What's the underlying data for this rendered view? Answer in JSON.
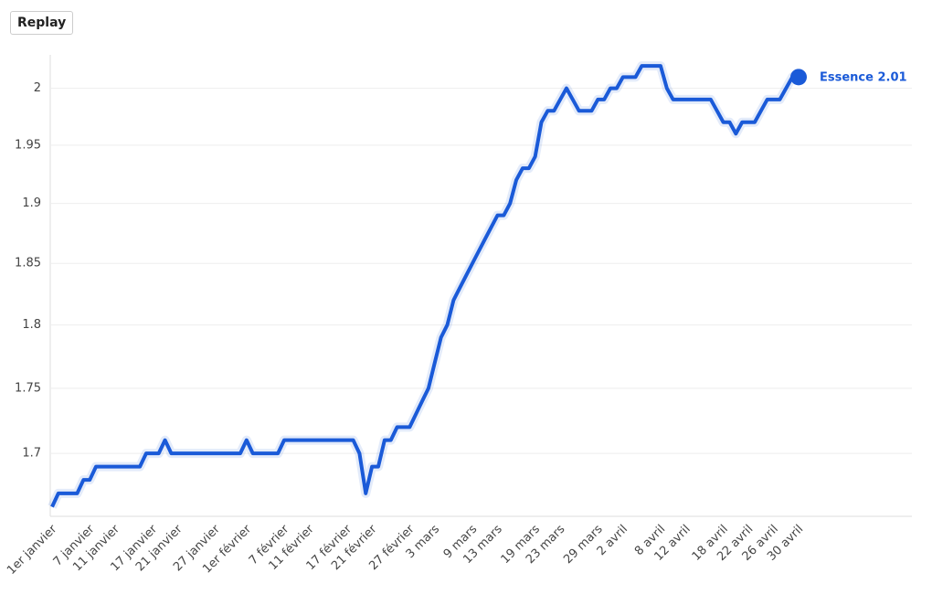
{
  "replay_button": "Replay",
  "chart_data": {
    "type": "line",
    "categories": [
      "1er janvier",
      null,
      null,
      null,
      null,
      null,
      "7 janvier",
      null,
      null,
      null,
      "11 janvier",
      null,
      null,
      null,
      null,
      null,
      "17 janvier",
      null,
      null,
      null,
      "21 janvier",
      null,
      null,
      null,
      null,
      null,
      "27 janvier",
      null,
      null,
      null,
      null,
      "1er février",
      null,
      null,
      null,
      null,
      null,
      "7 février",
      null,
      null,
      null,
      "11 février",
      null,
      null,
      null,
      null,
      null,
      "17 février",
      null,
      null,
      null,
      "21 février",
      null,
      null,
      null,
      null,
      null,
      "27 février",
      null,
      null,
      null,
      "3 mars",
      null,
      null,
      null,
      null,
      null,
      "9 mars",
      null,
      null,
      null,
      "13 mars",
      null,
      null,
      null,
      null,
      null,
      "19 mars",
      null,
      null,
      null,
      "23 mars",
      null,
      null,
      null,
      null,
      null,
      "29 mars",
      null,
      null,
      null,
      "2 avril",
      null,
      null,
      null,
      null,
      null,
      "8 avril",
      null,
      null,
      null,
      "12 avril",
      null,
      null,
      null,
      null,
      null,
      "18 avril",
      null,
      null,
      null,
      "22 avril",
      null,
      null,
      null,
      "26 avril",
      null,
      null,
      null,
      "30 avril"
    ],
    "series": [
      {
        "name": "Essence",
        "color": "#1a5ad8",
        "values": [
          1.66,
          1.67,
          1.67,
          1.67,
          1.67,
          1.68,
          1.68,
          1.69,
          1.69,
          1.69,
          1.69,
          1.69,
          1.69,
          1.69,
          1.69,
          1.7,
          1.7,
          1.7,
          1.71,
          1.7,
          1.7,
          1.7,
          1.7,
          1.7,
          1.7,
          1.7,
          1.7,
          1.7,
          1.7,
          1.7,
          1.7,
          1.71,
          1.7,
          1.7,
          1.7,
          1.7,
          1.7,
          1.71,
          1.71,
          1.71,
          1.71,
          1.71,
          1.71,
          1.71,
          1.71,
          1.71,
          1.71,
          1.71,
          1.71,
          1.7,
          1.67,
          1.69,
          1.69,
          1.71,
          1.71,
          1.72,
          1.72,
          1.72,
          1.73,
          1.74,
          1.75,
          1.77,
          1.79,
          1.8,
          1.82,
          1.83,
          1.84,
          1.85,
          1.86,
          1.87,
          1.88,
          1.89,
          1.89,
          1.9,
          1.92,
          1.93,
          1.93,
          1.94,
          1.97,
          1.98,
          1.98,
          1.99,
          2.0,
          1.99,
          1.98,
          1.98,
          1.98,
          1.99,
          1.99,
          2.0,
          2.0,
          2.01,
          2.01,
          2.01,
          2.02,
          2.02,
          2.02,
          2.02,
          2.0,
          1.99,
          1.99,
          1.99,
          1.99,
          1.99,
          1.99,
          1.99,
          1.98,
          1.97,
          1.97,
          1.96,
          1.97,
          1.97,
          1.97,
          1.98,
          1.99,
          1.99,
          1.99,
          2.0,
          2.01,
          2.01
        ]
      }
    ],
    "ylim": [
      1.653,
      2.03
    ],
    "yticks": [
      1.7,
      1.75,
      1.8,
      1.85,
      1.9,
      1.95,
      2
    ],
    "log_scale": true,
    "grid": true
  }
}
